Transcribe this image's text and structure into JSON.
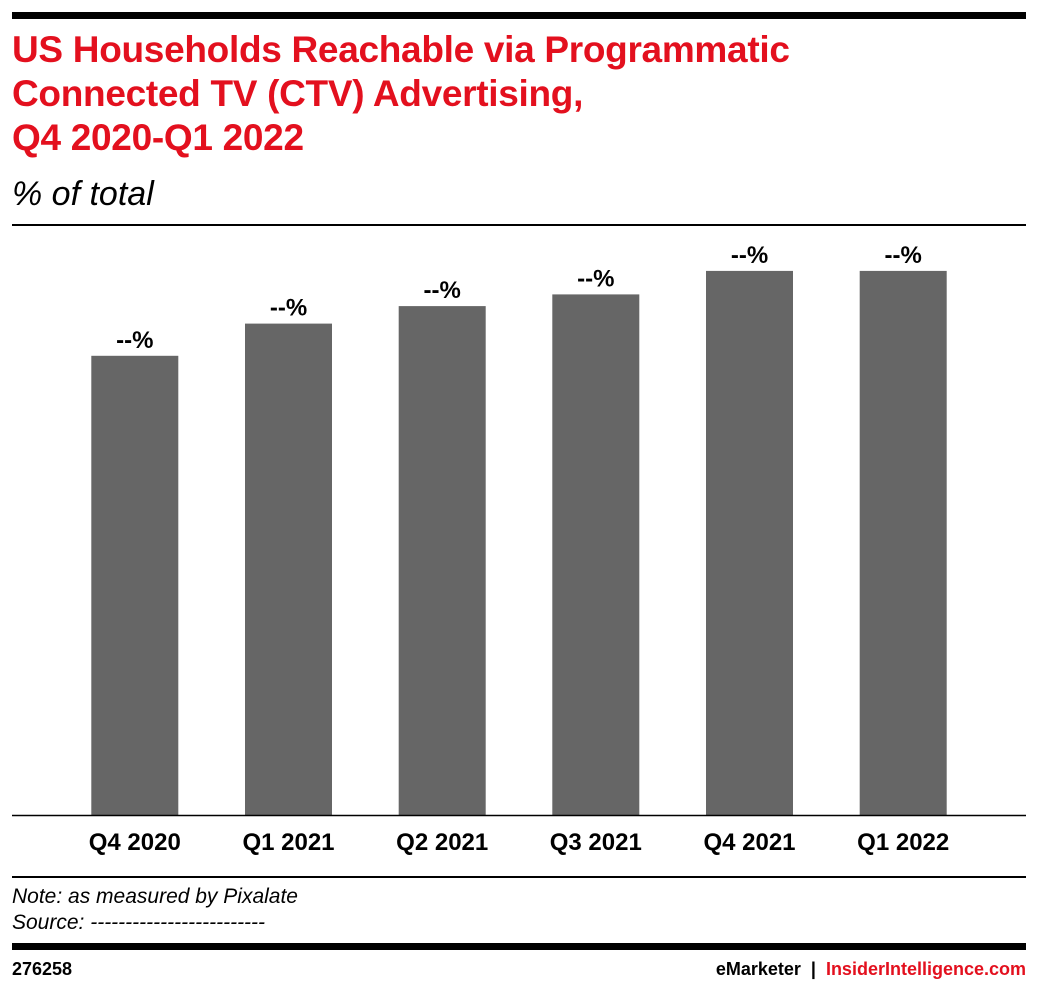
{
  "header": {
    "title_lines": [
      "US Households Reachable via Programmatic",
      "Connected TV (CTV) Advertising,",
      "Q4 2020-Q1 2022"
    ],
    "subtitle": "% of total"
  },
  "colors": {
    "title": "#e3101e",
    "bar": "#666666",
    "brand_accent": "#e3101e"
  },
  "chart_data": {
    "type": "bar",
    "title": "US Households Reachable via Programmatic Connected TV (CTV) Advertising, Q4 2020-Q1 2022",
    "subtitle": "% of total",
    "categories": [
      "Q4 2020",
      "Q1 2021",
      "Q2 2021",
      "Q3 2021",
      "Q4 2021",
      "Q1 2022"
    ],
    "values": [
      78.5,
      84,
      87,
      89,
      93,
      93
    ],
    "data_labels": [
      "--%",
      "--%",
      "--%",
      "--%",
      "--%",
      "--%"
    ],
    "ylim": [
      0,
      100
    ],
    "grid": false,
    "legend": "none"
  },
  "notes": {
    "note": "Note: as measured by Pixalate",
    "source": "Source: -------------------------"
  },
  "footer": {
    "chart_id": "276258",
    "brand": "eMarketer",
    "separator": "|",
    "brand_site": "InsiderIntelligence.com"
  }
}
